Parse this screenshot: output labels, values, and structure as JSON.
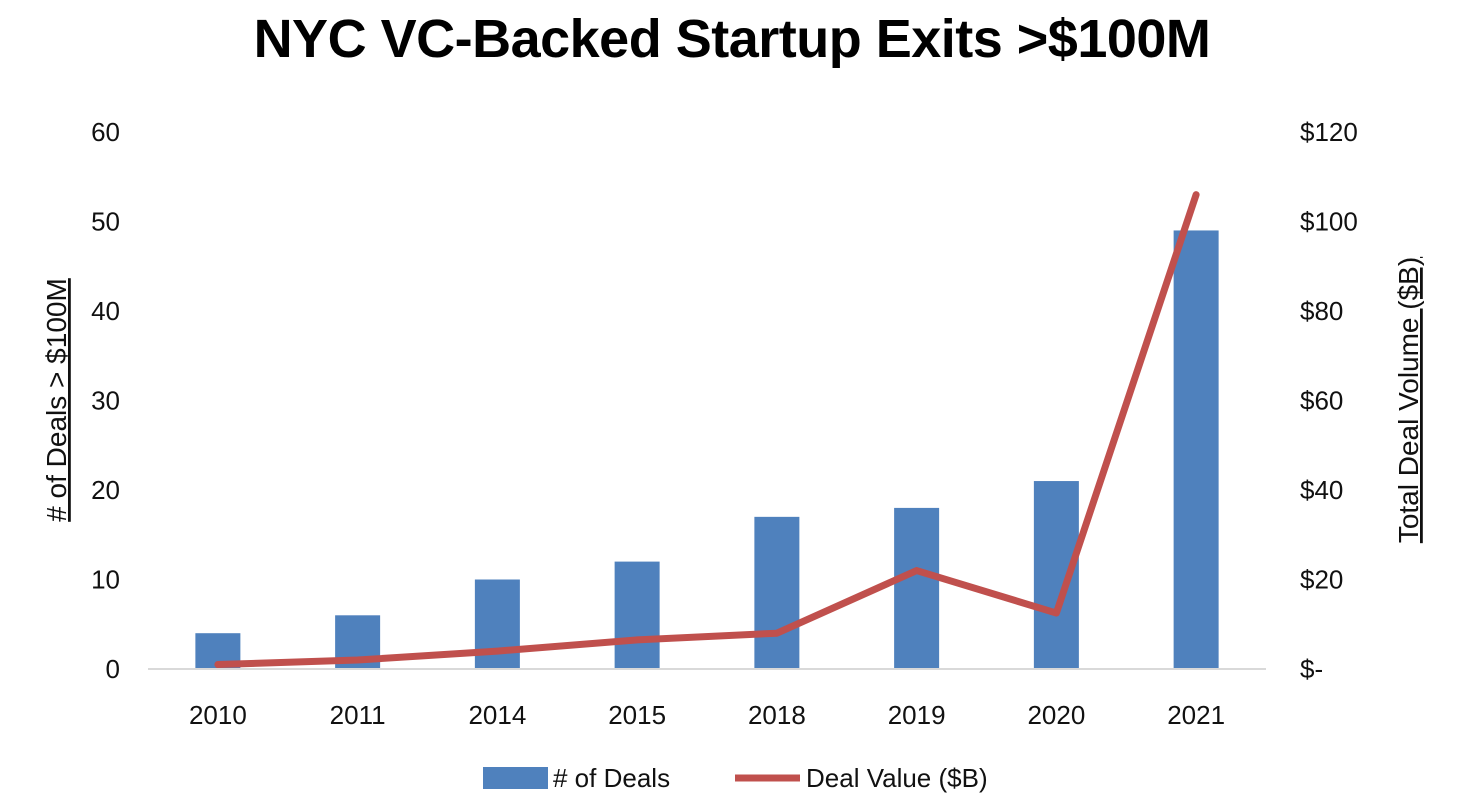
{
  "chart_data": {
    "type": "bar",
    "title": "NYC VC-Backed Startup Exits >$100M",
    "categories": [
      "2010",
      "2011",
      "2014",
      "2015",
      "2018",
      "2019",
      "2020",
      "2021"
    ],
    "series": [
      {
        "name": "# of Deals",
        "kind": "bar",
        "axis": "left",
        "color": "#4F81BD",
        "values": [
          4,
          6,
          10,
          12,
          17,
          18,
          21,
          49
        ]
      },
      {
        "name": "Deal Value ($B)",
        "kind": "line",
        "axis": "right",
        "color": "#C0504D",
        "values": [
          1,
          2,
          4,
          6.5,
          8,
          22,
          12.5,
          106
        ]
      }
    ],
    "ylabel": "# of Deals > $100M",
    "y2label": "Total Deal Volume ($B)",
    "ylim": [
      0,
      60
    ],
    "y2lim": [
      0,
      120
    ],
    "yticks": [
      "0",
      "10",
      "20",
      "30",
      "40",
      "50",
      "60"
    ],
    "y2ticks": [
      "$-",
      "$20",
      "$40",
      "$60",
      "$80",
      "$100",
      "$120"
    ],
    "grid": false,
    "legend_position": "bottom"
  }
}
